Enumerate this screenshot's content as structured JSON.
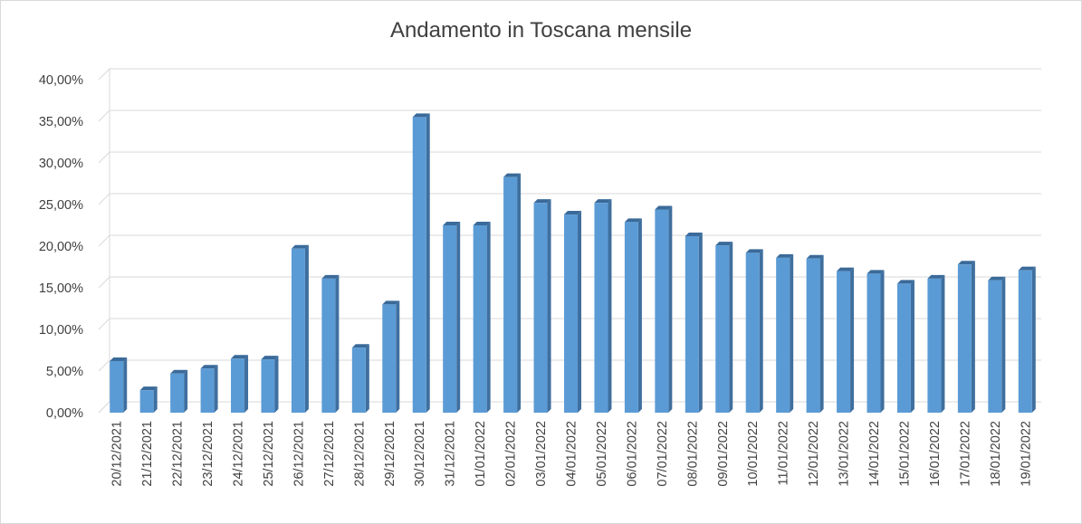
{
  "chart_data": {
    "type": "bar",
    "title": "Andamento in Toscana mensile",
    "xlabel": "",
    "ylabel": "",
    "ylim": [
      0,
      40
    ],
    "y_ticks": [
      "0,00%",
      "5,00%",
      "10,00%",
      "15,00%",
      "20,00%",
      "25,00%",
      "30,00%",
      "35,00%",
      "40,00%"
    ],
    "grid": true,
    "legend": "none",
    "bar_color": "#5b9bd5",
    "categories": [
      "20/12/2021",
      "21/12/2021",
      "22/12/2021",
      "23/12/2021",
      "24/12/2021",
      "25/12/2021",
      "26/12/2021",
      "27/12/2021",
      "28/12/2021",
      "29/12/2021",
      "30/12/2021",
      "31/12/2021",
      "01/01/2022",
      "02/01/2022",
      "03/01/2022",
      "04/01/2022",
      "05/01/2022",
      "06/01/2022",
      "07/01/2022",
      "08/01/2022",
      "09/01/2022",
      "10/01/2022",
      "11/01/2022",
      "12/01/2022",
      "13/01/2022",
      "14/01/2022",
      "15/01/2022",
      "16/01/2022",
      "17/01/2022",
      "18/01/2022",
      "19/01/2022"
    ],
    "values": [
      6.2,
      2.7,
      4.7,
      5.3,
      6.5,
      6.4,
      19.7,
      16.1,
      7.8,
      13.0,
      35.5,
      22.5,
      22.5,
      28.3,
      25.2,
      23.8,
      25.2,
      22.9,
      24.4,
      21.2,
      20.1,
      19.2,
      18.6,
      18.5,
      17.0,
      16.7,
      15.5,
      16.1,
      17.8,
      15.9,
      17.1
    ]
  }
}
